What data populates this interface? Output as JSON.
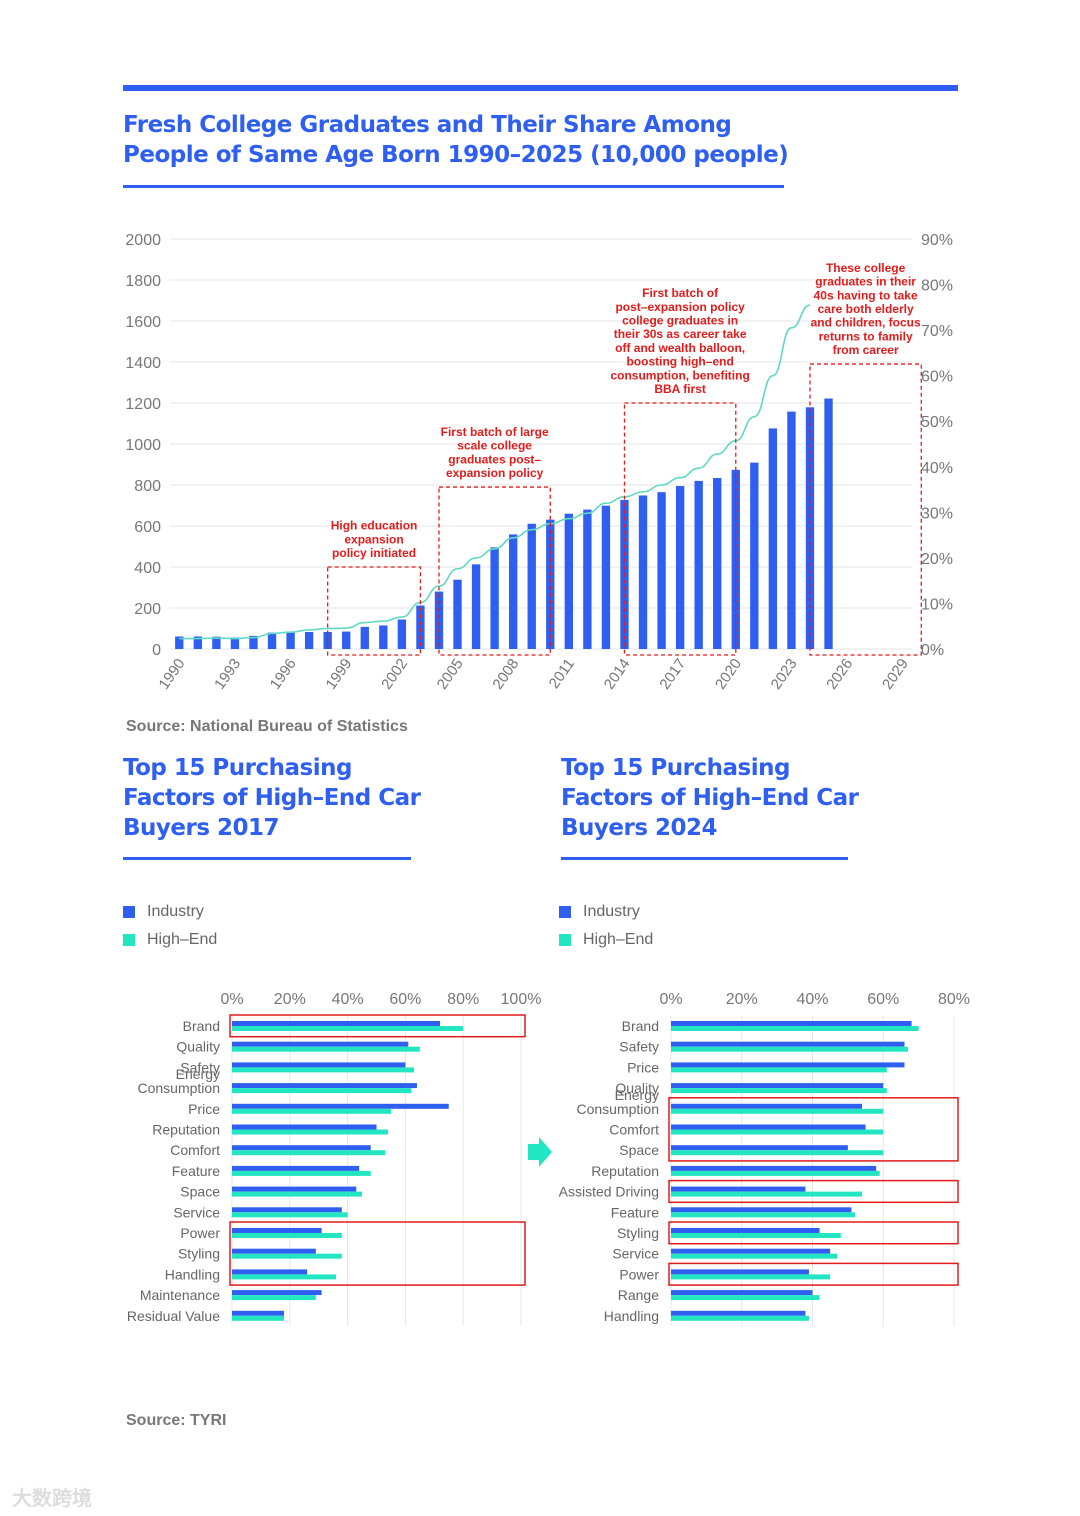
{
  "main_title": "Fresh College Graduates and Their Share Among People of Same Age Born 1990–2025 (10,000 people)",
  "source_top": "Source: National Bureau of Statistics",
  "source_bottom": "Source: TYRI",
  "left_title": "Top 15 Purchasing Factors of High–End Car Buyers 2017",
  "right_title": "Top 15 Purchasing Factors of High–End Car Buyers 2024",
  "legend": {
    "industry": "Industry",
    "highend": "High–End"
  },
  "colors": {
    "blue": "#2f5ff0",
    "teal": "#21e6c1",
    "line": "#5fd9c4",
    "red": "#e21b1b",
    "grid": "#e6e6e6"
  },
  "watermark": "大数跨境",
  "chart_data": [
    {
      "type": "bar",
      "title": "Fresh College Graduates and Their Share Among People of Same Age Born 1990–2025 (10,000 people)",
      "x_start": 1990,
      "x_end": 2029,
      "x_ticks": [
        "1990",
        "1993",
        "1996",
        "1999",
        "2002",
        "2005",
        "2008",
        "2011",
        "2014",
        "2017",
        "2020",
        "2023",
        "2026",
        "2029"
      ],
      "y_ticks": [
        "0",
        "200",
        "400",
        "600",
        "800",
        "1000",
        "1200",
        "1400",
        "1600",
        "1800",
        "2000"
      ],
      "y2_ticks": [
        "0%",
        "10%",
        "20%",
        "30%",
        "40%",
        "50%",
        "60%",
        "70%",
        "80%",
        "90%"
      ],
      "ylim": [
        0,
        2000
      ],
      "y2lim": [
        0,
        90
      ],
      "series": [
        {
          "name": "Graduates",
          "years": [
            1990,
            1991,
            1992,
            1993,
            1994,
            1995,
            1996,
            1997,
            1998,
            1999,
            2000,
            2001,
            2002,
            2003,
            2004,
            2005,
            2006,
            2007,
            2008,
            2009,
            2010,
            2011,
            2012,
            2013,
            2014,
            2015,
            2016,
            2017,
            2018,
            2019,
            2020,
            2021,
            2022,
            2023,
            2024,
            2025
          ],
          "values": [
            61,
            61,
            60,
            56,
            64,
            80,
            84,
            83,
            83,
            85,
            108,
            115,
            144,
            212,
            280,
            338,
            413,
            496,
            559,
            611,
            631,
            660,
            680,
            699,
            727,
            749,
            765,
            795,
            820,
            834,
            874,
            909,
            1076,
            1158,
            1179,
            1222
          ]
        },
        {
          "name": "Share",
          "years": [
            1990,
            1991,
            1992,
            1993,
            1994,
            1995,
            1996,
            1997,
            1998,
            1999,
            2000,
            2001,
            2002,
            2003,
            2004,
            2005,
            2006,
            2007,
            2008,
            2009,
            2010,
            2011,
            2012,
            2013,
            2014,
            2015,
            2016,
            2017,
            2018,
            2019,
            2020,
            2021,
            2022,
            2023,
            2024
          ],
          "values": [
            2.3,
            2.3,
            2.4,
            2.3,
            2.5,
            3.4,
            3.7,
            4.2,
            4.5,
            4.6,
            5.8,
            6.1,
            7.0,
            10.2,
            13.8,
            17.6,
            20.0,
            22.0,
            24.4,
            26.2,
            27.5,
            28.6,
            29.8,
            32.0,
            33.4,
            34.5,
            36.0,
            37.6,
            39.7,
            42.8,
            45.7,
            51.0,
            60.0,
            70.5,
            75.5
          ]
        }
      ],
      "annotations": [
        {
          "text": [
            "High education",
            "expansion",
            "policy initiated"
          ],
          "x_from": 1998.5,
          "x_to": 2003.5,
          "y_top": 400
        },
        {
          "text": [
            "First batch of large",
            "scale college",
            "graduates post–",
            "expansion policy"
          ],
          "x_from": 2004.5,
          "x_to": 2010.5,
          "y_top": 790
        },
        {
          "text": [
            "First batch of",
            "post–expansion policy",
            "college graduates in",
            "their 30s as career take",
            "off and wealth balloon,",
            "boosting high–end",
            "consumption, benefiting",
            "BBA first"
          ],
          "x_from": 2014.5,
          "x_to": 2020.5,
          "y_top": 1200
        },
        {
          "text": [
            "These college",
            "graduates in their",
            "40s having to take",
            "care both elderly",
            "and children, focus",
            "returns to family",
            "from career"
          ],
          "x_from": 2024.5,
          "x_to": 2030.5,
          "y_top": 1390
        }
      ]
    },
    {
      "type": "bar",
      "orientation": "horizontal",
      "title": "Top 15 Purchasing Factors of High–End Car Buyers 2017",
      "xlim": [
        0,
        100
      ],
      "x_ticks": [
        "0%",
        "20%",
        "40%",
        "60%",
        "80%",
        "100%"
      ],
      "categories": [
        [
          "Brand"
        ],
        [
          "Quality"
        ],
        [
          "Safety"
        ],
        [
          "Energy",
          "Consumption"
        ],
        [
          "Price"
        ],
        [
          "Reputation"
        ],
        [
          "Comfort"
        ],
        [
          "Feature"
        ],
        [
          "Space"
        ],
        [
          "Service"
        ],
        [
          "Power"
        ],
        [
          "Styling"
        ],
        [
          "Handling"
        ],
        [
          "Maintenance"
        ],
        [
          "Residual Value"
        ]
      ],
      "series": [
        {
          "name": "Industry",
          "values": [
            72,
            61,
            60,
            64,
            75,
            50,
            48,
            44,
            43,
            38,
            31,
            29,
            26,
            31,
            18
          ]
        },
        {
          "name": "High–End",
          "values": [
            80,
            65,
            63,
            62,
            55,
            54,
            53,
            48,
            45,
            40,
            38,
            38,
            36,
            29,
            18
          ]
        }
      ],
      "highlights": [
        [
          0,
          0
        ],
        [
          10,
          12
        ]
      ]
    },
    {
      "type": "bar",
      "orientation": "horizontal",
      "title": "Top 15 Purchasing Factors of High–End Car Buyers 2024",
      "xlim": [
        0,
        80
      ],
      "x_ticks": [
        "0%",
        "20%",
        "40%",
        "60%",
        "80%"
      ],
      "categories": [
        [
          "Brand"
        ],
        [
          "Safety"
        ],
        [
          "Price"
        ],
        [
          "Quality"
        ],
        [
          "Energy",
          "Consumption"
        ],
        [
          "Comfort"
        ],
        [
          "Space"
        ],
        [
          "Reputation"
        ],
        [
          "Assisted Driving"
        ],
        [
          "Feature"
        ],
        [
          "Styling"
        ],
        [
          "Service"
        ],
        [
          "Power"
        ],
        [
          "Range"
        ],
        [
          "Handling"
        ]
      ],
      "series": [
        {
          "name": "Industry",
          "values": [
            68,
            66,
            66,
            60,
            54,
            55,
            50,
            58,
            38,
            51,
            42,
            45,
            39,
            40,
            38
          ]
        },
        {
          "name": "High–End",
          "values": [
            70,
            67,
            61,
            61,
            60,
            60,
            60,
            59,
            54,
            52,
            48,
            47,
            45,
            42,
            39
          ]
        }
      ],
      "highlights": [
        [
          4,
          6
        ],
        [
          8,
          8
        ],
        [
          10,
          10
        ],
        [
          12,
          12
        ]
      ]
    }
  ]
}
